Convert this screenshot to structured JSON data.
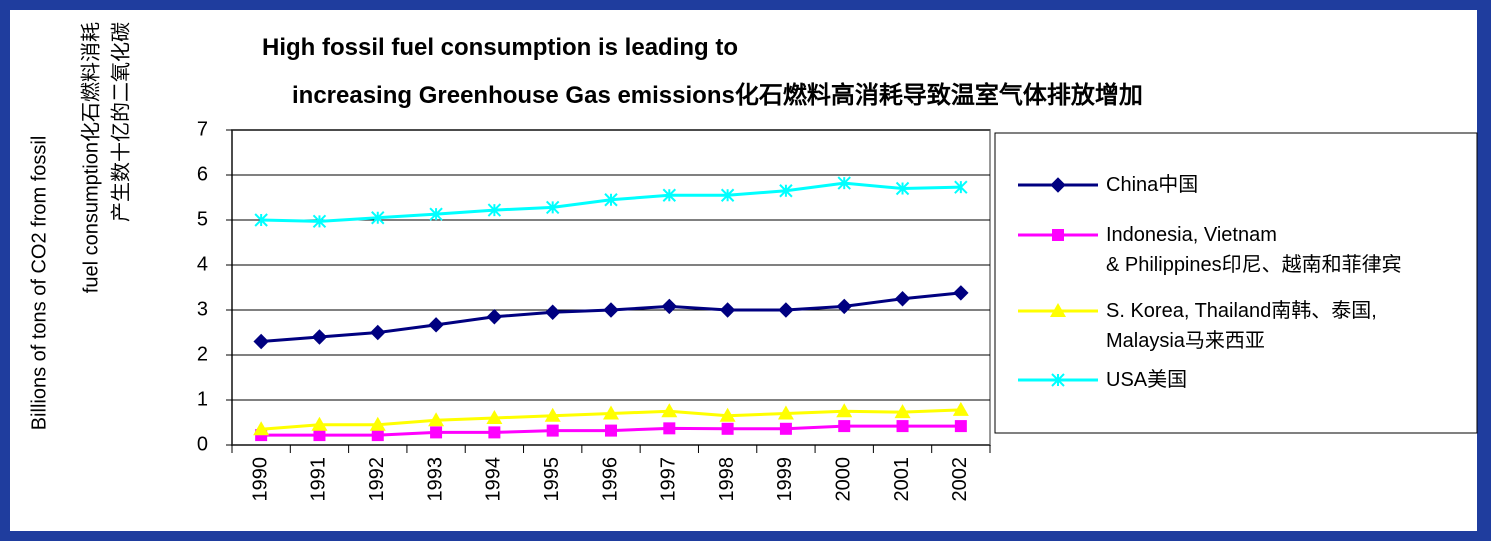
{
  "chart_data": {
    "type": "line",
    "title": [
      "High fossil fuel consumption is leading to",
      "increasing Greenhouse Gas emissions化石燃料高消耗导致温室气体排放增加"
    ],
    "ylabel": [
      "Billions of tons of CO2 from fossil",
      "fuel consumption化石燃料消耗",
      "产生数十亿的二氧化碳"
    ],
    "categories": [
      "1990",
      "1991",
      "1992",
      "1993",
      "1994",
      "1995",
      "1996",
      "1997",
      "1998",
      "1999",
      "2000",
      "2001",
      "2002"
    ],
    "series": [
      {
        "name": "China中国",
        "color": "#000080",
        "marker": "diamond",
        "values": [
          2.3,
          2.4,
          2.5,
          2.67,
          2.85,
          2.95,
          3.0,
          3.08,
          3.0,
          3.0,
          3.08,
          3.25,
          3.38
        ]
      },
      {
        "name": "Indonesia, Vietnam\n& Philippines印尼、越南和菲律宾",
        "color": "#ff00ff",
        "marker": "square",
        "values": [
          0.22,
          0.22,
          0.22,
          0.28,
          0.28,
          0.32,
          0.32,
          0.37,
          0.36,
          0.36,
          0.42,
          0.42,
          0.42
        ]
      },
      {
        "name": "S. Korea, Thailand南韩、泰国,\nMalaysia马来西亚",
        "color": "#ffff00",
        "marker": "triangle",
        "values": [
          0.35,
          0.45,
          0.45,
          0.55,
          0.6,
          0.65,
          0.7,
          0.75,
          0.65,
          0.7,
          0.75,
          0.73,
          0.78
        ]
      },
      {
        "name": "USA美国",
        "color": "#00ffff",
        "marker": "star",
        "values": [
          5.0,
          4.97,
          5.05,
          5.13,
          5.22,
          5.28,
          5.45,
          5.55,
          5.55,
          5.65,
          5.82,
          5.7,
          5.73
        ]
      }
    ],
    "ylim": [
      0,
      7
    ],
    "yticks": [
      0,
      1,
      2,
      3,
      4,
      5,
      6,
      7
    ],
    "grid": true,
    "legend": "right"
  }
}
